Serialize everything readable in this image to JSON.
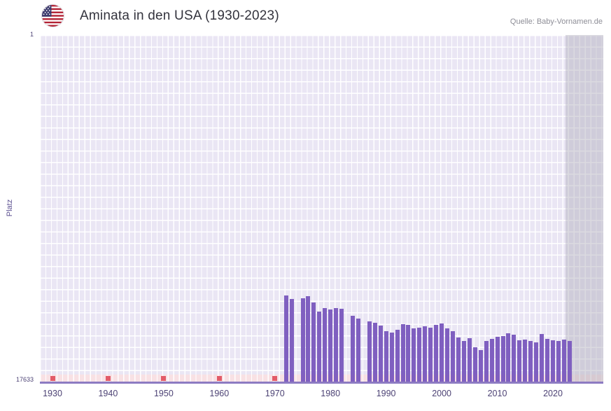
{
  "header": {
    "title": "Aminata in den USA (1930-2023)",
    "source": "Quelle: Baby-Vornamen.de"
  },
  "chart_data": {
    "type": "bar",
    "title": "Aminata in den USA (1930-2023)",
    "xlabel": "",
    "ylabel": "Platz",
    "y_axis": {
      "min": 1,
      "max": 17633,
      "top_label": "1",
      "bottom_label": "17633",
      "inverted": true
    },
    "x_range": [
      1930,
      2023
    ],
    "x_ticks": [
      1930,
      1940,
      1950,
      1960,
      1970,
      1980,
      1990,
      2000,
      2010,
      2020
    ],
    "no_data_mark_years": [
      1930,
      1940,
      1950,
      1960,
      1970
    ],
    "years": [
      1972,
      1973,
      1974,
      1975,
      1976,
      1977,
      1978,
      1979,
      1980,
      1981,
      1982,
      1983,
      1984,
      1985,
      1986,
      1987,
      1988,
      1989,
      1990,
      1991,
      1992,
      1993,
      1994,
      1995,
      1996,
      1997,
      1998,
      1999,
      2000,
      2001,
      2002,
      2003,
      2004,
      2005,
      2006,
      2007,
      2008,
      2009,
      2010,
      2011,
      2012,
      2013,
      2014,
      2015,
      2016,
      2017,
      2018,
      2019,
      2020,
      2021,
      2022,
      2023
    ],
    "ranks": [
      13260,
      13440,
      null,
      13390,
      13300,
      13620,
      14060,
      13900,
      13980,
      13880,
      13940,
      null,
      14280,
      14420,
      null,
      14580,
      14640,
      14780,
      15060,
      15120,
      14980,
      14700,
      14760,
      14920,
      14880,
      14820,
      14900,
      14760,
      14680,
      14940,
      15060,
      15400,
      15560,
      15420,
      15880,
      16040,
      15560,
      15460,
      15360,
      15300,
      15180,
      15240,
      15520,
      15480,
      15560,
      15620,
      15200,
      15460,
      15520,
      15560,
      15500,
      15580
    ],
    "legend": [],
    "grid": true,
    "colors": {
      "bar": "#7f5fc0",
      "grid_bg": "#eae6f4",
      "no_data_mark": "#e25b68",
      "bottom_strip": "#f8e1e4",
      "recent_band": "#b8b6c2",
      "axis_text": "#4d4375"
    }
  }
}
